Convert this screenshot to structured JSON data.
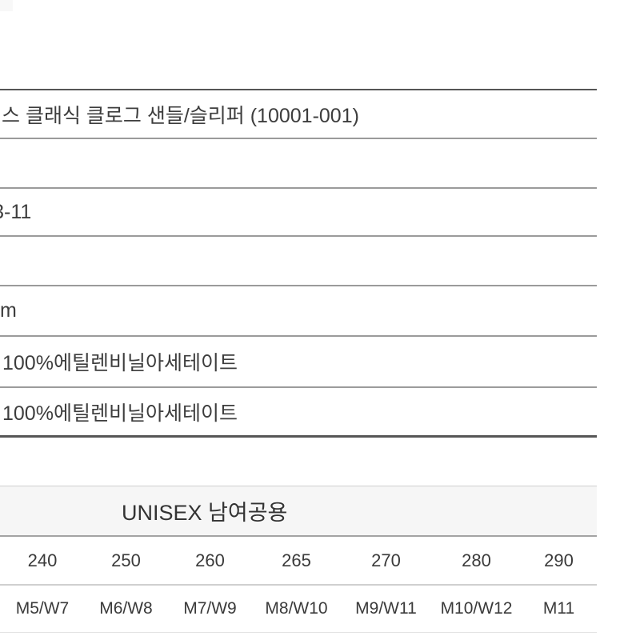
{
  "spec_table": {
    "rows": [
      {
        "label": "product-name",
        "value": "스 클래식 클로그 샌들/슬리퍼 (10001-001)"
      },
      {
        "label": "empty-row-1",
        "value": ""
      },
      {
        "label": "code-suffix",
        "value": "-11",
        "clipped_prefix": "3"
      },
      {
        "label": "empty-row-2",
        "value": ""
      },
      {
        "label": "unit-suffix",
        "value": "m"
      },
      {
        "label": "material-outer",
        "value": "100%에틸렌비닐아세테이트"
      },
      {
        "label": "material-sole",
        "value": "100%에틸렌비닐아세테이트"
      }
    ]
  },
  "size_table": {
    "header": "UNISEX 남여공용",
    "sizes_mm": [
      "240",
      "250",
      "260",
      "265",
      "270",
      "280",
      "290"
    ],
    "sizes_us": [
      "M5/W7",
      "M6/W8",
      "M7/W9",
      "M8/W10",
      "M9/W11",
      "M10/W12",
      "M11"
    ]
  },
  "colors": {
    "heavy_rule": "#565656",
    "inner_rule": "#9b9b9b",
    "light_rule": "#cfcfcf",
    "header_bg": "#f6f6f6",
    "text": "#3d3d3d"
  }
}
